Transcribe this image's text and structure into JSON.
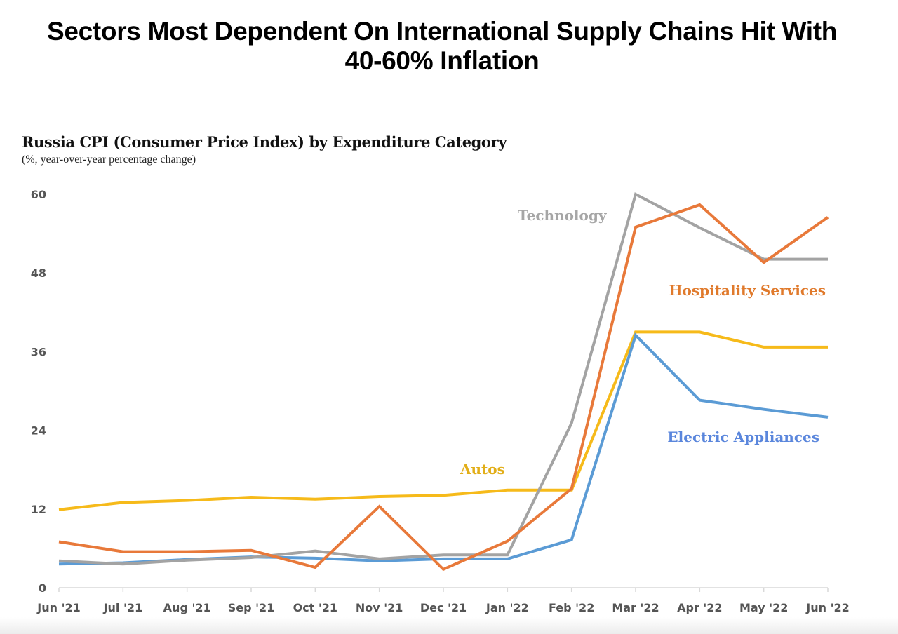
{
  "header": {
    "title": "Sectors Most Dependent On International Supply Chains Hit With 40-60% Inflation",
    "title_line1": "Sectors Most Dependent On International Supply Chains Hit With",
    "title_line2": "40-60% Inflation"
  },
  "chart_data": {
    "type": "line",
    "title": "Russia CPI (Consumer Price Index) by Expenditure Category",
    "subtitle": "(%, year-over-year percentage change)",
    "xlabel": "",
    "ylabel": "",
    "ylim": [
      0,
      60
    ],
    "yticks": [
      0,
      12,
      24,
      36,
      48,
      60
    ],
    "grid": false,
    "legend": "inline-labels",
    "x": [
      "Jun '21",
      "Jul '21",
      "Aug '21",
      "Sep '21",
      "Oct '21",
      "Nov '21",
      "Dec '21",
      "Jan '22",
      "Feb '22",
      "Mar '22",
      "Apr '22",
      "May '22",
      "Jun '22"
    ],
    "series": [
      {
        "name": "Autos",
        "color": "#F6BA1A",
        "label_color": "#E2AE18",
        "values": [
          11.9,
          13.0,
          13.3,
          13.8,
          13.5,
          13.9,
          14.1,
          14.9,
          14.9,
          39.0,
          39.0,
          36.7,
          36.7
        ]
      },
      {
        "name": "Hospitality Services",
        "color": "#E8793A",
        "label_color": "#E07A2C",
        "values": [
          7.0,
          5.5,
          5.5,
          5.7,
          3.1,
          12.4,
          2.8,
          7.1,
          15.1,
          55.0,
          58.4,
          49.6,
          56.5
        ]
      },
      {
        "name": "Technology",
        "color": "#A3A3A3",
        "label_color": "#A6A6A6",
        "values": [
          4.1,
          3.6,
          4.2,
          4.6,
          5.6,
          4.4,
          5.0,
          5.0,
          25.1,
          60.0,
          54.9,
          50.1,
          50.1
        ]
      },
      {
        "name": "Electric Appliances",
        "color": "#5B9BD5",
        "label_color": "#5A86DC",
        "values": [
          3.6,
          3.8,
          4.3,
          4.7,
          4.5,
          4.1,
          4.4,
          4.4,
          7.3,
          38.5,
          28.6,
          27.2,
          26.0
        ]
      }
    ]
  }
}
